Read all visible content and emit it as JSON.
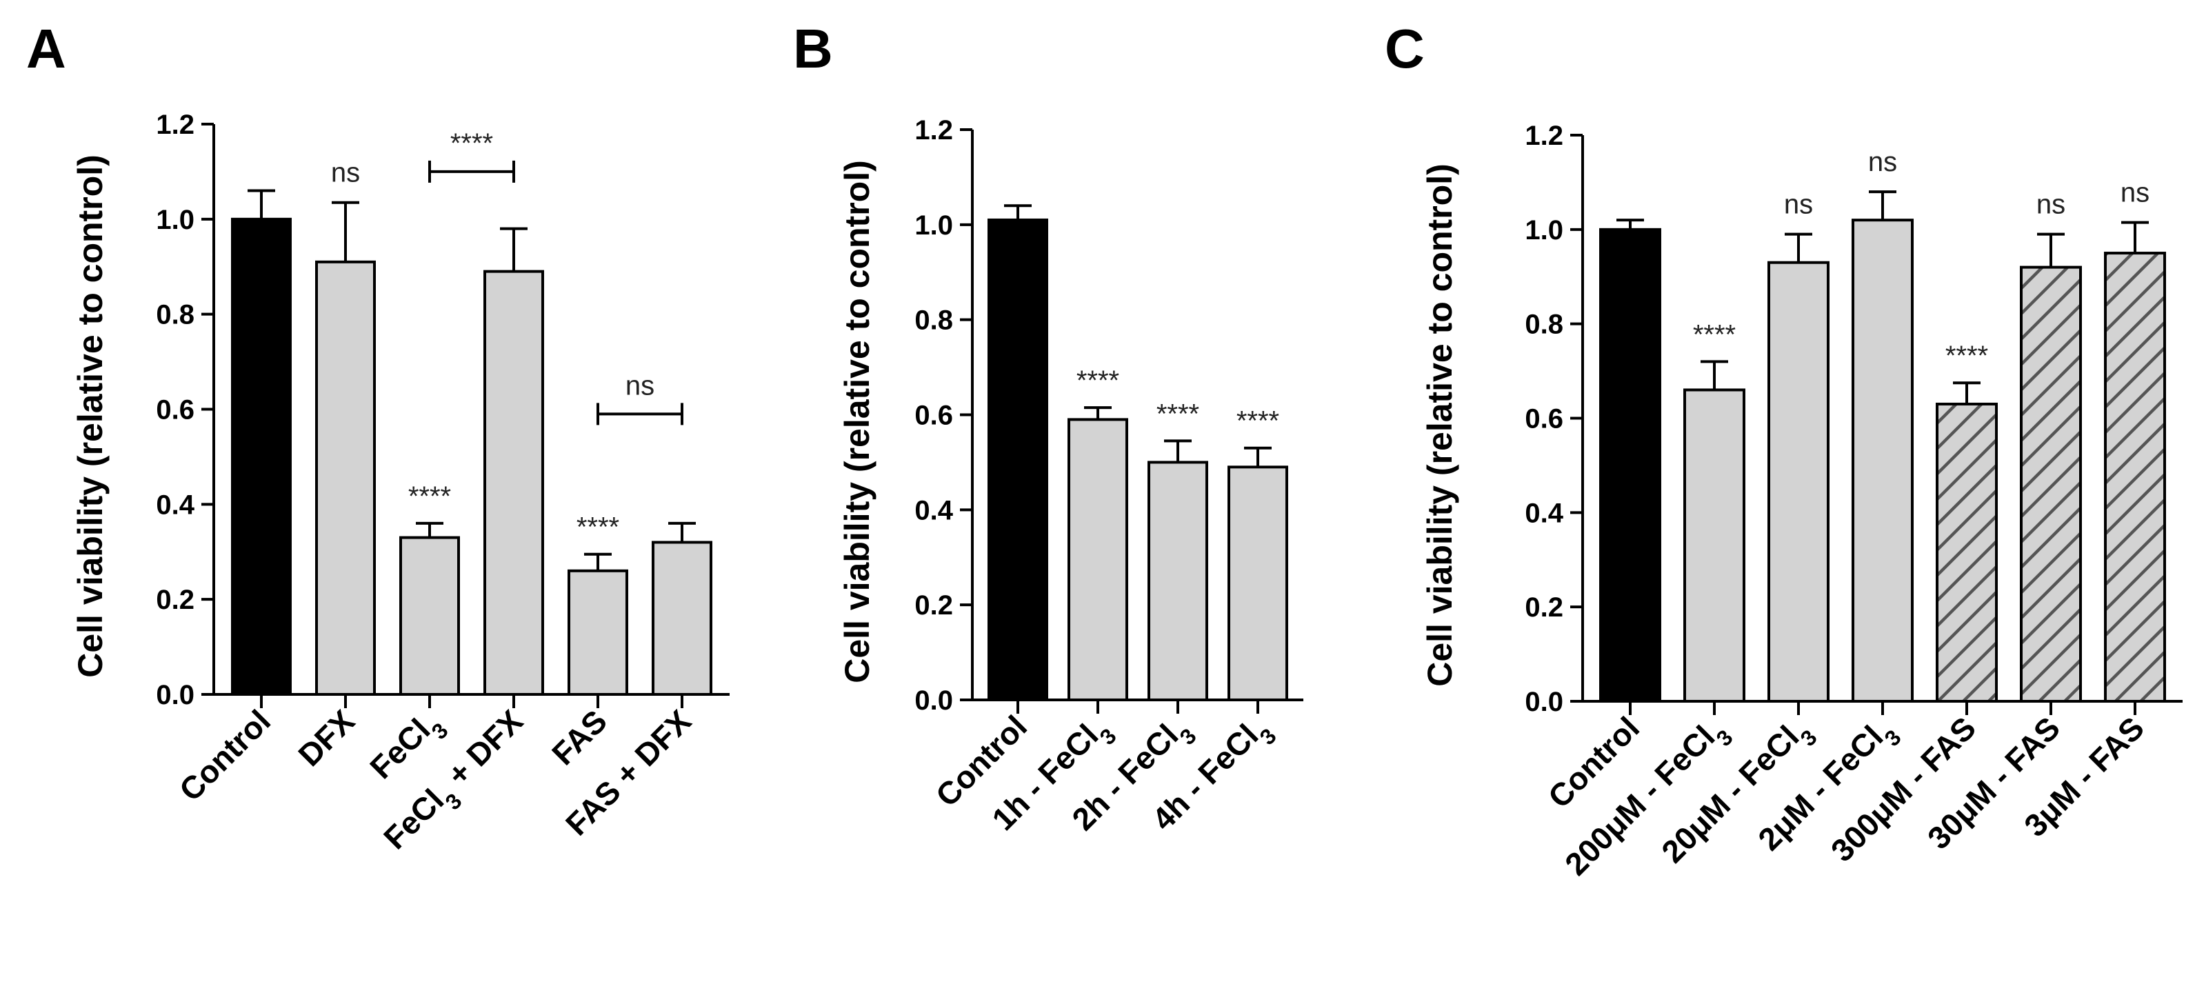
{
  "chart_data": [
    {
      "panel_label": "A",
      "type": "bar",
      "ylabel": "Cell viability (relative to control)",
      "ylim": [
        0,
        1.2
      ],
      "yticks": [
        "0.0",
        "0.2",
        "0.4",
        "0.6",
        "0.8",
        "1.0",
        "1.2"
      ],
      "categories": [
        {
          "parts": [
            {
              "t": "Control"
            }
          ]
        },
        {
          "parts": [
            {
              "t": "DFX"
            }
          ]
        },
        {
          "parts": [
            {
              "t": "FeCl"
            },
            {
              "t": "3",
              "sub": true
            }
          ]
        },
        {
          "parts": [
            {
              "t": "FeCl"
            },
            {
              "t": "3",
              "sub": true
            },
            {
              "t": " + DFX"
            }
          ]
        },
        {
          "parts": [
            {
              "t": "FAS"
            }
          ]
        },
        {
          "parts": [
            {
              "t": "FAS + DFX"
            }
          ]
        }
      ],
      "values": [
        1.0,
        0.91,
        0.33,
        0.89,
        0.26,
        0.32
      ],
      "errors": [
        0.06,
        0.125,
        0.03,
        0.09,
        0.035,
        0.04
      ],
      "fills": [
        "solid",
        "gray",
        "gray",
        "gray",
        "gray",
        "gray"
      ],
      "annotations": [
        {
          "bar": 1,
          "text": "ns"
        },
        {
          "bar": 2,
          "text": "****"
        },
        {
          "bar": 4,
          "text": "****"
        }
      ],
      "brackets": [
        {
          "from": 2,
          "to": 3,
          "y": 1.1,
          "text": "****"
        },
        {
          "from": 4,
          "to": 5,
          "y": 0.59,
          "text": "ns"
        }
      ]
    },
    {
      "panel_label": "B",
      "type": "bar",
      "ylabel": "Cell viability (relative to control)",
      "ylim": [
        0,
        1.2
      ],
      "yticks": [
        "0.0",
        "0.2",
        "0.4",
        "0.6",
        "0.8",
        "1.0",
        "1.2"
      ],
      "categories": [
        {
          "parts": [
            {
              "t": "Control"
            }
          ]
        },
        {
          "parts": [
            {
              "t": "1h - FeCl"
            },
            {
              "t": "3",
              "sub": true
            }
          ]
        },
        {
          "parts": [
            {
              "t": "2h - FeCl"
            },
            {
              "t": "3",
              "sub": true
            }
          ]
        },
        {
          "parts": [
            {
              "t": "4h - FeCl"
            },
            {
              "t": "3",
              "sub": true
            }
          ]
        }
      ],
      "values": [
        1.01,
        0.59,
        0.5,
        0.49
      ],
      "errors": [
        0.03,
        0.025,
        0.045,
        0.04
      ],
      "fills": [
        "solid",
        "gray",
        "gray",
        "gray"
      ],
      "annotations": [
        {
          "bar": 1,
          "text": "****"
        },
        {
          "bar": 2,
          "text": "****"
        },
        {
          "bar": 3,
          "text": "****"
        }
      ],
      "brackets": []
    },
    {
      "panel_label": "C",
      "type": "bar",
      "ylabel": "Cell viability (relative to control)",
      "ylim": [
        0,
        1.2
      ],
      "yticks": [
        "0.0",
        "0.2",
        "0.4",
        "0.6",
        "0.8",
        "1.0",
        "1.2"
      ],
      "categories": [
        {
          "parts": [
            {
              "t": "Control"
            }
          ]
        },
        {
          "parts": [
            {
              "t": "200μM - FeCl"
            },
            {
              "t": "3",
              "sub": true
            }
          ]
        },
        {
          "parts": [
            {
              "t": "20μM - FeCl"
            },
            {
              "t": "3",
              "sub": true
            }
          ]
        },
        {
          "parts": [
            {
              "t": "2μM - FeCl"
            },
            {
              "t": "3",
              "sub": true
            }
          ]
        },
        {
          "parts": [
            {
              "t": "300μM - FAS"
            }
          ]
        },
        {
          "parts": [
            {
              "t": "30μM - FAS"
            }
          ]
        },
        {
          "parts": [
            {
              "t": "3μM - FAS"
            }
          ]
        }
      ],
      "values": [
        1.0,
        0.66,
        0.93,
        1.02,
        0.63,
        0.92,
        0.95
      ],
      "errors": [
        0.02,
        0.06,
        0.06,
        0.06,
        0.045,
        0.07,
        0.065
      ],
      "fills": [
        "solid",
        "gray",
        "gray",
        "gray",
        "hatched",
        "hatched",
        "hatched"
      ],
      "annotations": [
        {
          "bar": 1,
          "text": "****"
        },
        {
          "bar": 2,
          "text": "ns"
        },
        {
          "bar": 3,
          "text": "ns"
        },
        {
          "bar": 4,
          "text": "****"
        },
        {
          "bar": 5,
          "text": "ns"
        },
        {
          "bar": 6,
          "text": "ns"
        }
      ],
      "brackets": []
    }
  ],
  "colors": {
    "control_fill": "#000000",
    "bar_fill": "#d3d3d3",
    "hatch_line": "#555555",
    "axis": "#000000",
    "annotation_text": "#222222"
  }
}
